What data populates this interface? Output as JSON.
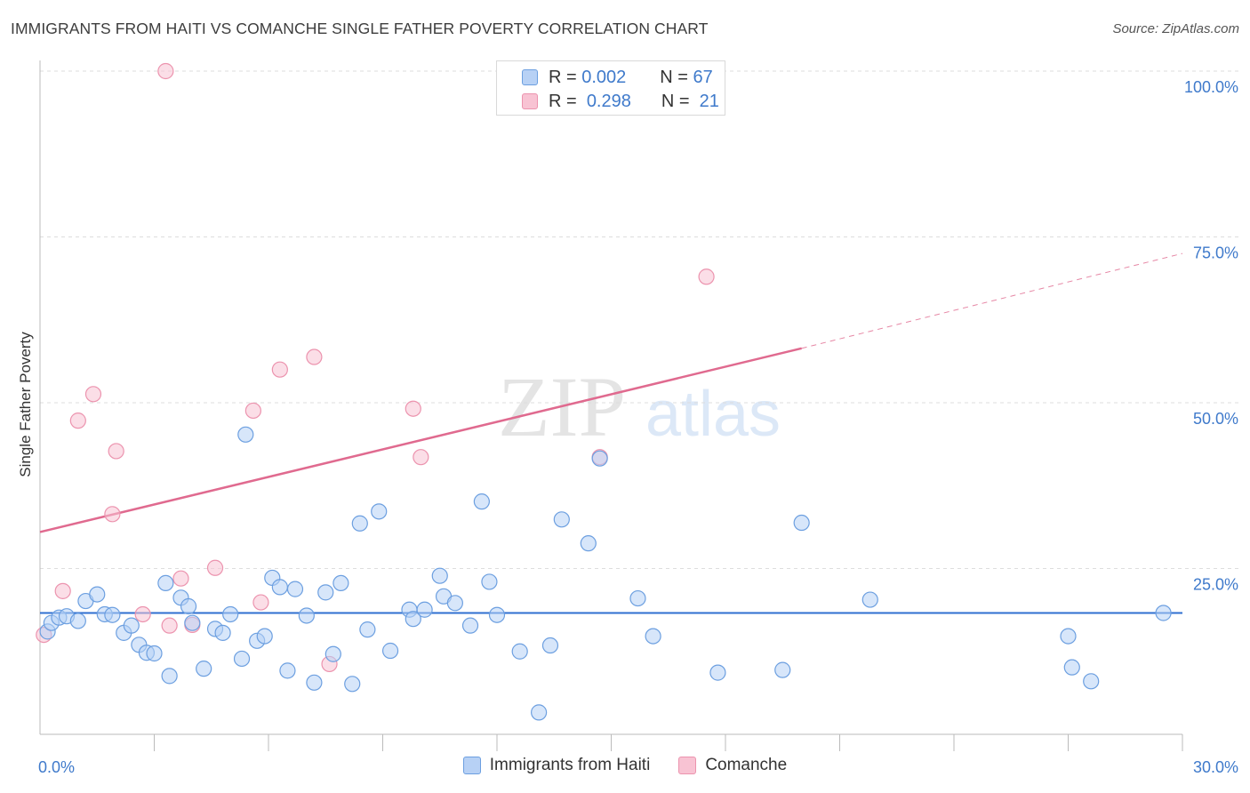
{
  "title": "IMMIGRANTS FROM HAITI VS COMANCHE SINGLE FATHER POVERTY CORRELATION CHART",
  "source": "Source: ZipAtlas.com",
  "watermark": {
    "zip": "ZIP",
    "atlas": "atlas"
  },
  "legend_top": [
    {
      "r_label": "R =",
      "r_value": "0.002",
      "n_label": "N =",
      "n_value": "67"
    },
    {
      "r_label": "R =",
      "r_value": "0.298",
      "n_label": "N =",
      "n_value": "21"
    }
  ],
  "colors": {
    "haiti_fill": "#b7d1f5",
    "haiti_stroke": "#6c9fe0",
    "haiti_line": "#2f6fd0",
    "comanche_fill": "#f8c3d3",
    "comanche_stroke": "#ec93ae",
    "comanche_line": "#e06a8f",
    "grid": "#dddddd",
    "tick_label": "#3f7acb"
  },
  "chart_data": {
    "type": "scatter",
    "title": "IMMIGRANTS FROM HAITI VS COMANCHE SINGLE FATHER POVERTY CORRELATION CHART",
    "xlabel": "",
    "ylabel": "Single Father Poverty",
    "xlim": [
      0,
      30
    ],
    "ylim": [
      0,
      100
    ],
    "x_tick_labels": [
      "0.0%",
      "30.0%"
    ],
    "y_ticks": [
      25,
      50,
      75,
      100
    ],
    "y_tick_labels": [
      "25.0%",
      "50.0%",
      "75.0%",
      "100.0%"
    ],
    "grid": true,
    "legend_position": "bottom",
    "series": [
      {
        "name": "Immigrants from Haiti",
        "R": 0.002,
        "N": 67,
        "trend": {
          "x": [
            0,
            30
          ],
          "y": [
            18.3,
            18.3
          ]
        },
        "points": [
          [
            0.2,
            15.5
          ],
          [
            0.3,
            16.8
          ],
          [
            0.5,
            17.6
          ],
          [
            0.7,
            17.8
          ],
          [
            1.0,
            17.1
          ],
          [
            1.2,
            20.1
          ],
          [
            1.5,
            21.1
          ],
          [
            1.7,
            18.1
          ],
          [
            1.9,
            18.0
          ],
          [
            2.2,
            15.3
          ],
          [
            2.4,
            16.4
          ],
          [
            2.6,
            13.5
          ],
          [
            2.8,
            12.3
          ],
          [
            3.0,
            12.2
          ],
          [
            3.3,
            22.8
          ],
          [
            3.4,
            8.8
          ],
          [
            3.7,
            20.6
          ],
          [
            3.9,
            19.3
          ],
          [
            4.0,
            16.8
          ],
          [
            4.3,
            9.9
          ],
          [
            4.6,
            15.9
          ],
          [
            4.8,
            15.3
          ],
          [
            5.0,
            18.1
          ],
          [
            5.3,
            11.4
          ],
          [
            5.4,
            45.2
          ],
          [
            5.7,
            14.1
          ],
          [
            5.9,
            14.8
          ],
          [
            6.1,
            23.6
          ],
          [
            6.3,
            22.2
          ],
          [
            6.5,
            9.6
          ],
          [
            6.7,
            21.9
          ],
          [
            7.0,
            17.9
          ],
          [
            7.2,
            7.8
          ],
          [
            7.5,
            21.4
          ],
          [
            7.7,
            12.1
          ],
          [
            7.9,
            22.8
          ],
          [
            8.2,
            7.6
          ],
          [
            8.4,
            31.8
          ],
          [
            8.6,
            15.8
          ],
          [
            8.9,
            33.6
          ],
          [
            9.2,
            12.6
          ],
          [
            9.7,
            18.8
          ],
          [
            9.8,
            17.4
          ],
          [
            10.1,
            18.8
          ],
          [
            10.5,
            23.9
          ],
          [
            10.6,
            20.8
          ],
          [
            10.9,
            19.8
          ],
          [
            11.3,
            16.4
          ],
          [
            11.6,
            35.1
          ],
          [
            11.8,
            23.0
          ],
          [
            12.0,
            18.0
          ],
          [
            12.6,
            12.5
          ],
          [
            13.1,
            3.3
          ],
          [
            13.4,
            13.4
          ],
          [
            13.7,
            32.4
          ],
          [
            14.4,
            28.8
          ],
          [
            14.7,
            41.6
          ],
          [
            15.7,
            20.5
          ],
          [
            16.1,
            14.8
          ],
          [
            17.8,
            9.3
          ],
          [
            19.5,
            9.7
          ],
          [
            20.0,
            31.9
          ],
          [
            21.8,
            20.3
          ],
          [
            27.0,
            14.8
          ],
          [
            27.1,
            10.1
          ],
          [
            27.6,
            8.0
          ],
          [
            29.5,
            18.3
          ]
        ]
      },
      {
        "name": "Comanche",
        "R": 0.298,
        "N": 21,
        "trend": {
          "x": [
            0,
            20
          ],
          "y": [
            30.5,
            58.2
          ],
          "dashed_to": {
            "x": 30,
            "y": 72.5
          }
        },
        "points": [
          [
            0.1,
            15.0
          ],
          [
            0.6,
            21.6
          ],
          [
            1.0,
            47.3
          ],
          [
            1.4,
            51.3
          ],
          [
            1.9,
            33.2
          ],
          [
            2.0,
            42.7
          ],
          [
            2.7,
            18.1
          ],
          [
            3.3,
            100.0
          ],
          [
            3.4,
            16.4
          ],
          [
            3.7,
            23.5
          ],
          [
            4.0,
            16.5
          ],
          [
            4.6,
            25.1
          ],
          [
            5.6,
            48.8
          ],
          [
            5.8,
            19.9
          ],
          [
            6.3,
            55.0
          ],
          [
            7.2,
            56.9
          ],
          [
            7.6,
            10.6
          ],
          [
            9.8,
            49.1
          ],
          [
            10.0,
            41.8
          ],
          [
            14.7,
            41.8
          ],
          [
            17.5,
            69.0
          ]
        ]
      }
    ]
  }
}
